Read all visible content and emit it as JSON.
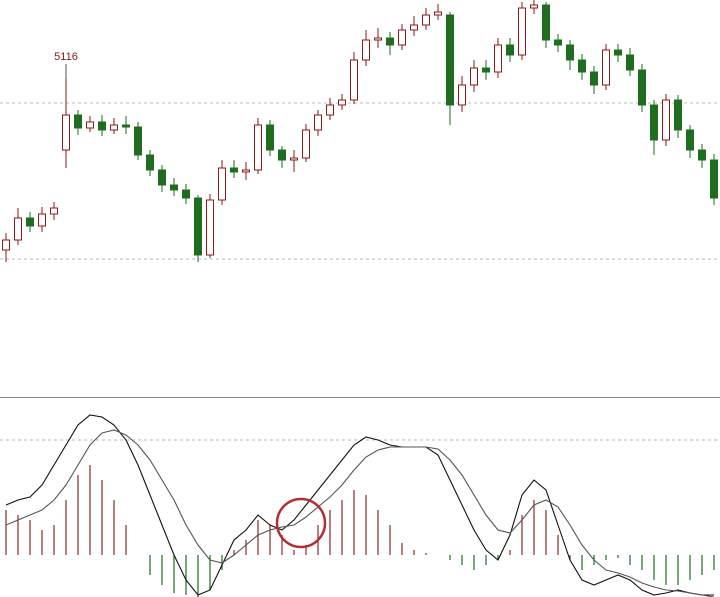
{
  "chart_data": [
    {
      "type": "candlestick",
      "open": [
        4944,
        4954,
        4976,
        4968,
        4980,
        5044,
        5079,
        5066,
        5072,
        5064,
        5069,
        5067,
        5039,
        5024,
        5009,
        5004,
        4996,
        4939,
        4994,
        5026,
        5022,
        5024,
        5069,
        5044,
        5034,
        5036,
        5064,
        5079,
        5089,
        5094,
        5134,
        5154,
        5156,
        5149,
        5164,
        5169,
        5179,
        5179,
        5089,
        5109,
        5126,
        5122,
        5149,
        5139,
        5186,
        5189,
        5154,
        5149,
        5134,
        5122,
        5109,
        5144,
        5139,
        5124,
        5089,
        5054,
        5094,
        5064,
        5044,
        5034
      ],
      "high": [
        4961,
        4986,
        4982,
        4987,
        4992,
        5116,
        5084,
        5078,
        5079,
        5076,
        5078,
        5072,
        5044,
        5029,
        5016,
        5010,
        4999,
        5000,
        5034,
        5034,
        5032,
        5076,
        5074,
        5048,
        5044,
        5070,
        5084,
        5096,
        5100,
        5142,
        5164,
        5166,
        5162,
        5170,
        5178,
        5186,
        5190,
        5182,
        5118,
        5134,
        5134,
        5156,
        5156,
        5192,
        5194,
        5192,
        5160,
        5154,
        5140,
        5128,
        5150,
        5150,
        5146,
        5130,
        5094,
        5100,
        5099,
        5069,
        5050,
        5040
      ],
      "low": [
        4932,
        4949,
        4962,
        4962,
        4974,
        5026,
        5059,
        5062,
        5058,
        5060,
        5060,
        5034,
        5018,
        5002,
        4998,
        4990,
        4932,
        4936,
        4989,
        5016,
        5014,
        5020,
        5038,
        5026,
        5022,
        5032,
        5058,
        5074,
        5084,
        5090,
        5128,
        5146,
        5139,
        5144,
        5158,
        5164,
        5174,
        5069,
        5082,
        5102,
        5114,
        5116,
        5132,
        5134,
        5180,
        5146,
        5142,
        5124,
        5114,
        5100,
        5104,
        5132,
        5118,
        5082,
        5039,
        5048,
        5056,
        5036,
        5026,
        4989
      ],
      "close": [
        4954,
        4976,
        4968,
        4980,
        4986,
        5079,
        5066,
        5072,
        5064,
        5069,
        5067,
        5039,
        5024,
        5009,
        5004,
        4996,
        4939,
        4994,
        5026,
        5022,
        5024,
        5069,
        5044,
        5034,
        5036,
        5064,
        5079,
        5089,
        5094,
        5134,
        5154,
        5156,
        5149,
        5164,
        5169,
        5179,
        5182,
        5089,
        5109,
        5126,
        5122,
        5149,
        5139,
        5186,
        5189,
        5154,
        5149,
        5134,
        5122,
        5109,
        5144,
        5139,
        5124,
        5089,
        5054,
        5094,
        5064,
        5044,
        5034,
        4996
      ],
      "high_label": 5116,
      "up_color": "#ffffff",
      "up_edge": "#8b1a1a",
      "down_color": "#1f6e1f",
      "label_color": "#8b1a1a",
      "ylim": [
        4799,
        5194
      ]
    },
    {
      "type": "macd",
      "histogram": {
        "values": [
          45,
          40,
          35,
          25,
          30,
          55,
          80,
          90,
          75,
          55,
          30,
          0,
          -20,
          -30,
          -38,
          -40,
          -42,
          -35,
          -15,
          5,
          15,
          35,
          30,
          20,
          5,
          10,
          30,
          45,
          55,
          65,
          60,
          45,
          30,
          12,
          5,
          2,
          0,
          -5,
          -10,
          -15,
          -10,
          -5,
          5,
          40,
          55,
          45,
          20,
          -5,
          -15,
          -10,
          -5,
          -3,
          -10,
          -15,
          -25,
          -30,
          -30,
          -25,
          -20,
          -15
        ],
        "positive_color": "#8b2a2a",
        "negative_color": "#1e6b1e"
      },
      "series": [
        {
          "color": "#111111",
          "values": [
            50,
            55,
            58,
            70,
            90,
            110,
            130,
            140,
            138,
            130,
            115,
            90,
            60,
            30,
            0,
            -25,
            -40,
            -35,
            -10,
            15,
            25,
            40,
            30,
            25,
            35,
            50,
            65,
            80,
            95,
            110,
            118,
            115,
            110,
            108,
            108,
            108,
            100,
            75,
            50,
            25,
            5,
            -5,
            20,
            60,
            75,
            65,
            30,
            -5,
            -25,
            -30,
            -25,
            -20,
            -25,
            -35,
            -40,
            -38,
            -35,
            -38,
            -40,
            -40
          ]
        },
        {
          "color": "#555555",
          "values": [
            30,
            35,
            40,
            45,
            55,
            70,
            90,
            110,
            122,
            125,
            120,
            110,
            95,
            75,
            55,
            30,
            10,
            -5,
            -8,
            0,
            10,
            20,
            25,
            28,
            30,
            38,
            48,
            58,
            70,
            85,
            98,
            105,
            108,
            108,
            108,
            108,
            106,
            95,
            80,
            60,
            40,
            25,
            22,
            35,
            50,
            55,
            48,
            30,
            10,
            -5,
            -15,
            -18,
            -22,
            -28,
            -32,
            -35,
            -36,
            -38,
            -40,
            -42
          ]
        }
      ],
      "ylim": [
        -42,
        158
      ]
    }
  ]
}
